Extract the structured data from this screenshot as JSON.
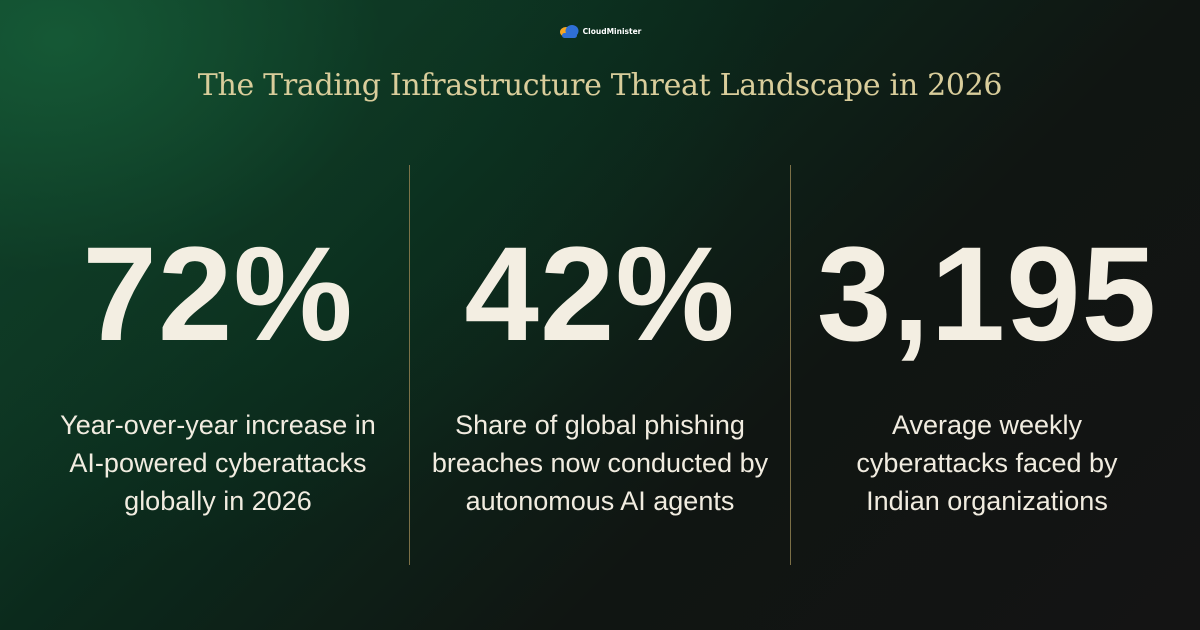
{
  "brand": {
    "name": "CloudMinister",
    "logo_icon": "cloud-logo-icon",
    "logo_colors": [
      "#f5a623",
      "#2f6fd6"
    ]
  },
  "title": "The Trading Infrastructure Threat Landscape in 2026",
  "colors": {
    "background_green": "#124a30",
    "background_dark": "#141414",
    "title_gold": "#d9cd9b",
    "divider_gold": "#8f7f50",
    "text_cream": "#f3eee2"
  },
  "stats": [
    {
      "value": "72%",
      "description": "Year-over-year increase in AI-powered cyberattacks globally in 2026"
    },
    {
      "value": "42%",
      "description": "Share of global phishing breaches now conducted by autonomous AI agents"
    },
    {
      "value": "3,195",
      "description": "Average weekly cyberattacks faced by Indian organizations"
    }
  ]
}
